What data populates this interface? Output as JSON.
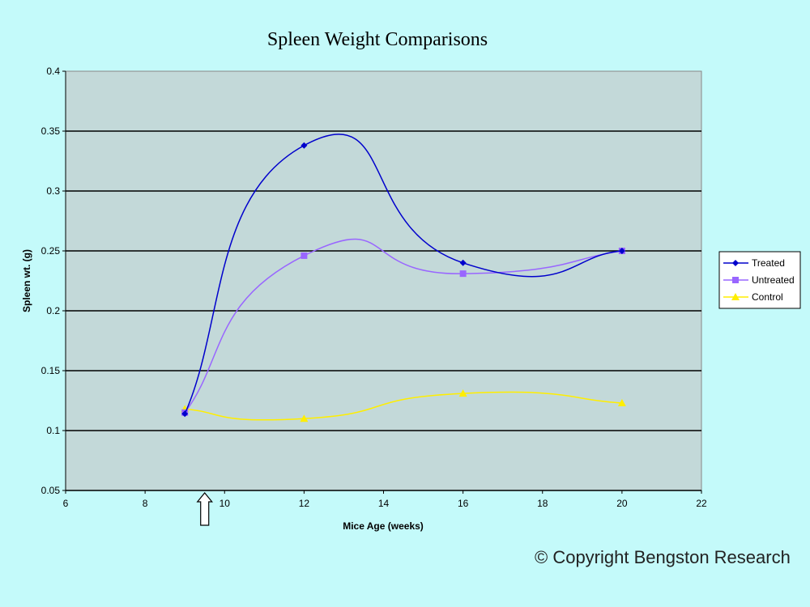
{
  "chart_data": {
    "type": "line",
    "title": "Spleen Weight Comparisons",
    "xlabel": "Mice Age (weeks)",
    "ylabel": "Spleen wt. (g)",
    "xlim": [
      6,
      22
    ],
    "ylim": [
      0.05,
      0.4
    ],
    "x_ticks": [
      6,
      8,
      10,
      12,
      14,
      16,
      18,
      20,
      22
    ],
    "y_ticks": [
      0.05,
      0.1,
      0.15,
      0.2,
      0.25,
      0.3,
      0.35,
      0.4
    ],
    "y_tick_labels": [
      "0.05",
      "0.1",
      "0.15",
      "0.2",
      "0.25",
      "0.3",
      "0.35",
      "0.4"
    ],
    "grid": "horizontal",
    "smoothed": true,
    "legend_position": "right",
    "x": [
      9,
      12,
      16,
      20
    ],
    "series": [
      {
        "name": "Treated",
        "values": [
          0.114,
          0.338,
          0.24,
          0.25
        ],
        "color": "#0000cc",
        "marker": "diamond"
      },
      {
        "name": "Untreated",
        "values": [
          0.115,
          0.246,
          0.231,
          0.25
        ],
        "color": "#9966ff",
        "marker": "square"
      },
      {
        "name": "Control",
        "values": [
          0.118,
          0.11,
          0.131,
          0.123
        ],
        "color": "#ffee00",
        "marker": "triangle"
      }
    ],
    "annotations": [
      {
        "type": "arrow-up",
        "x": 9.5
      }
    ]
  },
  "footer": {
    "copyright": "© Copyright Bengston Research"
  }
}
